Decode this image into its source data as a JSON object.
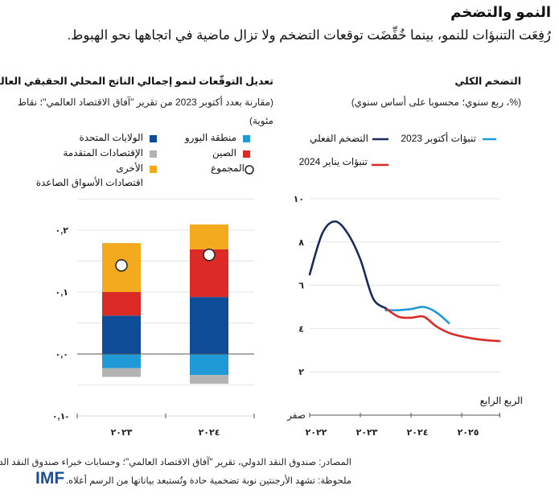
{
  "header": {
    "title": "النمو والتضخم",
    "subtitle": "رُفِعَت التنبؤات للنمو، بينما خُفِّضَت توقعات التضخم ولا تزال ماضية في اتجاهها نحو الهبوط."
  },
  "colors": {
    "euro_area": "#1f9ad6",
    "united_states": "#0f4c97",
    "china": "#dc2a27",
    "advanced": "#b3b3b3",
    "emerging_other": "#f3aa1d",
    "actual_inflation": "#1b2a5c",
    "oct2023_forecast": "#1f9ad6",
    "jan2024_forecast": "#dc2a27"
  },
  "chart_data": [
    {
      "type": "bar",
      "stacked": true,
      "title": "تعديل التوقّعات لنمو إجمالي الناتج المحلي الحقيقي العالمي",
      "subtitle": "(مقارنة بعدد أكتوبر 2023 من تقرير \"آفاق الاقتصاد العالمي\"؛ نقاط مئوية)",
      "categories": [
        "٢٠٢٣",
        "٢٠٢٤"
      ],
      "series": [
        {
          "name": "منطقة اليورو",
          "key": "euro_area",
          "values": [
            -0.023,
            -0.034
          ]
        },
        {
          "name": "الإقتصادات المتقدمة الأخرى",
          "key": "advanced",
          "values": [
            -0.014,
            -0.014
          ]
        },
        {
          "name": "الولايات المتحدة",
          "key": "united_states",
          "values": [
            0.062,
            0.092
          ]
        },
        {
          "name": "الصين",
          "key": "china",
          "values": [
            0.038,
            0.077
          ]
        },
        {
          "name": "اقتصادات الأسواق الصاعدة",
          "key": "emerging_other",
          "values": [
            0.079,
            0.04
          ]
        }
      ],
      "total": {
        "name": "المجموع",
        "values": [
          0.143,
          0.16
        ]
      },
      "legend": {
        "euro_area": "منطقة اليورو",
        "china": "الصين",
        "total": "المجموع",
        "united_states": "الولايات المتحدة",
        "advanced": "الإقتصادات المتقدمة",
        "other": "الأخرى",
        "emerging": "اقتصادات الأسواق الصاعدة"
      },
      "ylim": [
        -0.1,
        0.25
      ],
      "yticks": [
        {
          "value": 0.2,
          "label": "٠,٢"
        },
        {
          "value": 0.1,
          "label": "٠,١"
        },
        {
          "value": 0.0,
          "label": "٠,٠"
        },
        {
          "value": -0.1,
          "label": "٠,١-"
        }
      ],
      "grid": true
    },
    {
      "type": "line",
      "title": "التضخم الكلي",
      "subtitle": "(%، ربع سنوي؛ محسوبا على أساس سنوي)",
      "xlim": [
        2022,
        2025.75
      ],
      "ylim": [
        0,
        10
      ],
      "xticks": [
        {
          "value": 2022,
          "label": "٢٠٢٢"
        },
        {
          "value": 2023,
          "label": "٢٠٢٣"
        },
        {
          "value": 2024,
          "label": "٢٠٢٤"
        },
        {
          "value": 2025,
          "label": "٢٠٢٥"
        }
      ],
      "yticks": [
        {
          "value": 10,
          "label": "١٠"
        },
        {
          "value": 8,
          "label": "٨"
        },
        {
          "value": 6,
          "label": "٦"
        },
        {
          "value": 4,
          "label": "٤"
        },
        {
          "value": 2,
          "label": "٢"
        },
        {
          "value": 0,
          "label": "صفر"
        }
      ],
      "xaxis_note": "الربع الرابع",
      "grid": true,
      "series": [
        {
          "name": "التضخم الفعلي",
          "key": "actual_inflation",
          "x": [
            2022,
            2022.25,
            2022.5,
            2022.75,
            2023,
            2023.25,
            2023.5
          ],
          "y": [
            6.5,
            8.4,
            8.95,
            8.4,
            7.2,
            5.4,
            4.94
          ]
        },
        {
          "name": "تنبؤات أكتوبر 2023",
          "key": "oct2023_forecast",
          "x": [
            2023.5,
            2023.75,
            2024,
            2024.25,
            2024.5,
            2024.75
          ],
          "y": [
            4.85,
            4.85,
            4.9,
            5.0,
            4.75,
            4.25
          ]
        },
        {
          "name": "تنبؤات يناير 2024",
          "key": "jan2024_forecast",
          "x": [
            2023.5,
            2023.75,
            2024,
            2024.25,
            2024.5,
            2024.75,
            2025,
            2025.25,
            2025.5,
            2025.75
          ],
          "y": [
            4.94,
            4.55,
            4.5,
            4.55,
            4.1,
            3.8,
            3.64,
            3.53,
            3.46,
            3.42
          ]
        }
      ]
    }
  ],
  "footer": {
    "source": "المصادر: صندوق النقد الدولي، تقرير \"آفاق الاقتصاد العالمي\"؛ وحسابات خبراء صندوق النقد الدولي.",
    "note": "ملحوظة: تشهد الأرجنتين نوبة تضخمية حادة وتُستبعد بياناتها من الرسم أعلاه.",
    "logo": "IMF"
  }
}
